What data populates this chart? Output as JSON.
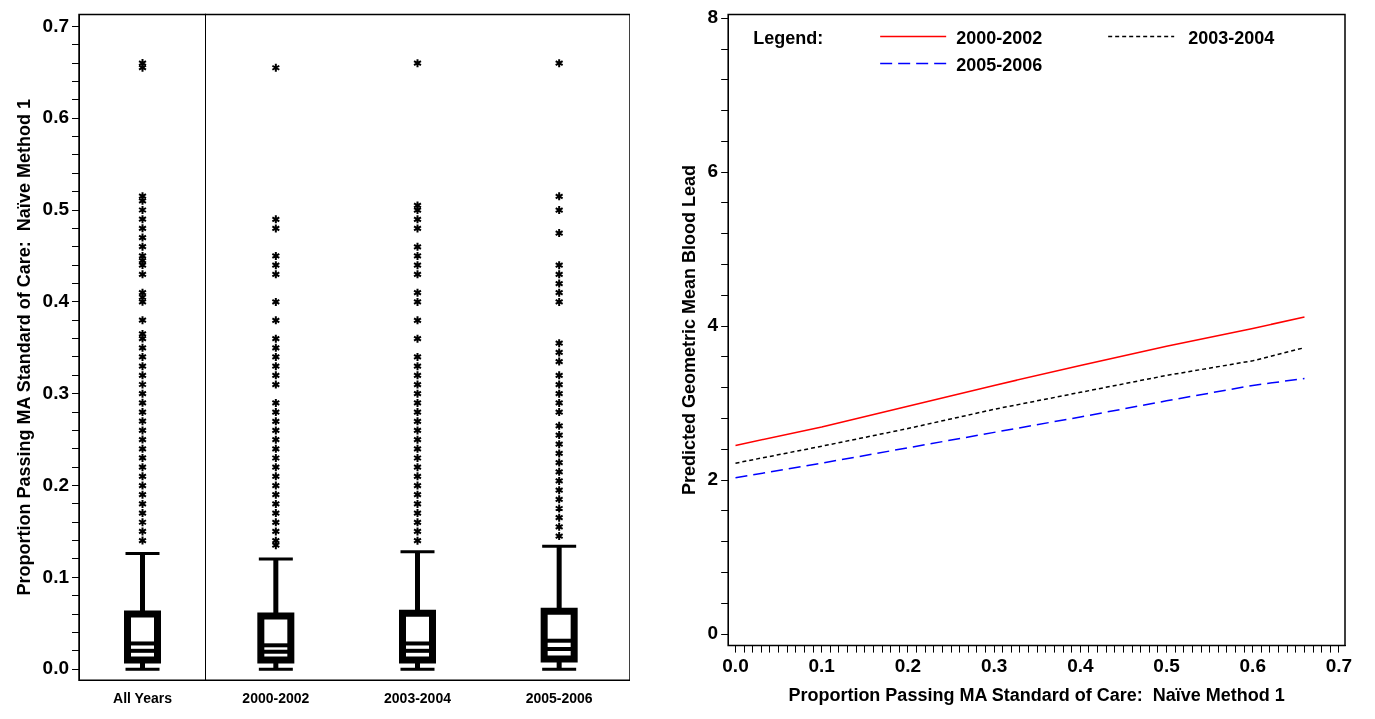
{
  "chart_data": [
    {
      "type": "box",
      "ylabel": "Proportion Passing MA Standard of Care:  Naïve Method 1",
      "categories": [
        "All Years"
      ],
      "ylim": [
        -0.012,
        0.713
      ],
      "yticks": [
        {
          "value": 0,
          "label": "0.0"
        },
        {
          "value": 0.02,
          "label": null
        },
        {
          "value": 0.04,
          "label": null
        },
        {
          "value": 0.06,
          "label": null
        },
        {
          "value": 0.08,
          "label": null
        },
        {
          "value": 0.1,
          "label": "0.1"
        },
        {
          "value": 0.12,
          "label": null
        },
        {
          "value": 0.14,
          "label": null
        },
        {
          "value": 0.16,
          "label": null
        },
        {
          "value": 0.18,
          "label": null
        },
        {
          "value": 0.2,
          "label": "0.2"
        },
        {
          "value": 0.22,
          "label": null
        },
        {
          "value": 0.24,
          "label": null
        },
        {
          "value": 0.26,
          "label": null
        },
        {
          "value": 0.28,
          "label": null
        },
        {
          "value": 0.3,
          "label": "0.3"
        },
        {
          "value": 0.32,
          "label": null
        },
        {
          "value": 0.34,
          "label": null
        },
        {
          "value": 0.36,
          "label": null
        },
        {
          "value": 0.38,
          "label": null
        },
        {
          "value": 0.4,
          "label": "0.4"
        },
        {
          "value": 0.42,
          "label": null
        },
        {
          "value": 0.44,
          "label": null
        },
        {
          "value": 0.46,
          "label": null
        },
        {
          "value": 0.48,
          "label": null
        },
        {
          "value": 0.5,
          "label": "0.5"
        },
        {
          "value": 0.52,
          "label": null
        },
        {
          "value": 0.54,
          "label": null
        },
        {
          "value": 0.56,
          "label": null
        },
        {
          "value": 0.58,
          "label": null
        },
        {
          "value": 0.6,
          "label": "0.6"
        },
        {
          "value": 0.62,
          "label": null
        },
        {
          "value": 0.64,
          "label": null
        },
        {
          "value": 0.66,
          "label": null
        },
        {
          "value": 0.68,
          "label": null
        },
        {
          "value": 0.7,
          "label": "0.7"
        }
      ],
      "boxes": [
        {
          "low": 0,
          "q1": 0.01,
          "median": 0.02,
          "mean": 0.028,
          "q3": 0.06,
          "high": 0.126,
          "outliers": [
            0.14,
            0.15,
            0.16,
            0.17,
            0.18,
            0.19,
            0.2,
            0.21,
            0.22,
            0.23,
            0.24,
            0.25,
            0.26,
            0.27,
            0.28,
            0.29,
            0.3,
            0.31,
            0.32,
            0.33,
            0.34,
            0.35,
            0.36,
            0.365,
            0.38,
            0.4,
            0.405,
            0.41,
            0.43,
            0.44,
            0.445,
            0.45,
            0.46,
            0.47,
            0.48,
            0.49,
            0.5,
            0.51,
            0.515,
            0.655,
            0.66
          ]
        }
      ]
    },
    {
      "type": "box",
      "categories": [
        "2000-2002",
        "2003-2004",
        "2005-2006"
      ],
      "ylim": [
        -0.012,
        0.713
      ],
      "tick_labels": "x",
      "yticks": [
        0,
        0.1,
        0.2,
        0.3,
        0.4,
        0.5,
        0.6,
        0.7
      ],
      "boxes": [
        {
          "low": 0,
          "q1": 0.01,
          "median": 0.019,
          "mean": 0.026,
          "q3": 0.058,
          "high": 0.12,
          "outliers": [
            0.135,
            0.14,
            0.15,
            0.16,
            0.17,
            0.18,
            0.19,
            0.2,
            0.21,
            0.22,
            0.23,
            0.24,
            0.25,
            0.26,
            0.27,
            0.28,
            0.29,
            0.31,
            0.32,
            0.33,
            0.34,
            0.35,
            0.36,
            0.38,
            0.4,
            0.43,
            0.44,
            0.45,
            0.48,
            0.49,
            0.655
          ]
        },
        {
          "low": 0,
          "q1": 0.01,
          "median": 0.02,
          "mean": 0.028,
          "q3": 0.061,
          "high": 0.128,
          "outliers": [
            0.14,
            0.15,
            0.16,
            0.17,
            0.18,
            0.19,
            0.2,
            0.21,
            0.22,
            0.23,
            0.24,
            0.25,
            0.26,
            0.27,
            0.28,
            0.29,
            0.3,
            0.31,
            0.32,
            0.33,
            0.34,
            0.36,
            0.38,
            0.4,
            0.41,
            0.43,
            0.44,
            0.45,
            0.46,
            0.48,
            0.49,
            0.5,
            0.505,
            0.66
          ]
        },
        {
          "low": 0,
          "q1": 0.011,
          "median": 0.022,
          "mean": 0.031,
          "q3": 0.063,
          "high": 0.134,
          "outliers": [
            0.145,
            0.155,
            0.165,
            0.175,
            0.185,
            0.195,
            0.205,
            0.215,
            0.225,
            0.235,
            0.245,
            0.255,
            0.265,
            0.28,
            0.29,
            0.3,
            0.31,
            0.32,
            0.335,
            0.345,
            0.355,
            0.4,
            0.41,
            0.42,
            0.43,
            0.44,
            0.475,
            0.5,
            0.515,
            0.66
          ]
        }
      ]
    },
    {
      "type": "line",
      "xlabel": "Proportion Passing MA Standard of Care:  Naïve Method 1",
      "ylabel": "Predicted Geometric Mean Blood Lead",
      "legend_title": "Legend:",
      "legend": "top",
      "marker": "none",
      "xlim": [
        -0.0085,
        0.707
      ],
      "ylim": [
        -0.15,
        8.05
      ],
      "xticks": [
        {
          "value": 0,
          "label": "0.0"
        },
        {
          "value": 0.01,
          "label": null
        },
        {
          "value": 0.02,
          "label": null
        },
        {
          "value": 0.03,
          "label": null
        },
        {
          "value": 0.04,
          "label": null
        },
        {
          "value": 0.05,
          "label": null
        },
        {
          "value": 0.06,
          "label": null
        },
        {
          "value": 0.07,
          "label": null
        },
        {
          "value": 0.08,
          "label": null
        },
        {
          "value": 0.09,
          "label": null
        },
        {
          "value": 0.1,
          "label": "0.1"
        },
        {
          "value": 0.11,
          "label": null
        },
        {
          "value": 0.12,
          "label": null
        },
        {
          "value": 0.13,
          "label": null
        },
        {
          "value": 0.14,
          "label": null
        },
        {
          "value": 0.15,
          "label": null
        },
        {
          "value": 0.16,
          "label": null
        },
        {
          "value": 0.17,
          "label": null
        },
        {
          "value": 0.18,
          "label": null
        },
        {
          "value": 0.19,
          "label": null
        },
        {
          "value": 0.2,
          "label": "0.2"
        },
        {
          "value": 0.21,
          "label": null
        },
        {
          "value": 0.22,
          "label": null
        },
        {
          "value": 0.23,
          "label": null
        },
        {
          "value": 0.24,
          "label": null
        },
        {
          "value": 0.25,
          "label": null
        },
        {
          "value": 0.26,
          "label": null
        },
        {
          "value": 0.27,
          "label": null
        },
        {
          "value": 0.28,
          "label": null
        },
        {
          "value": 0.29,
          "label": null
        },
        {
          "value": 0.3,
          "label": "0.3"
        },
        {
          "value": 0.31,
          "label": null
        },
        {
          "value": 0.32,
          "label": null
        },
        {
          "value": 0.33,
          "label": null
        },
        {
          "value": 0.34,
          "label": null
        },
        {
          "value": 0.35,
          "label": null
        },
        {
          "value": 0.36,
          "label": null
        },
        {
          "value": 0.37,
          "label": null
        },
        {
          "value": 0.38,
          "label": null
        },
        {
          "value": 0.39,
          "label": null
        },
        {
          "value": 0.4,
          "label": "0.4"
        },
        {
          "value": 0.41,
          "label": null
        },
        {
          "value": 0.42,
          "label": null
        },
        {
          "value": 0.43,
          "label": null
        },
        {
          "value": 0.44,
          "label": null
        },
        {
          "value": 0.45,
          "label": null
        },
        {
          "value": 0.46,
          "label": null
        },
        {
          "value": 0.47,
          "label": null
        },
        {
          "value": 0.48,
          "label": null
        },
        {
          "value": 0.49,
          "label": null
        },
        {
          "value": 0.5,
          "label": "0.5"
        },
        {
          "value": 0.51,
          "label": null
        },
        {
          "value": 0.52,
          "label": null
        },
        {
          "value": 0.53,
          "label": null
        },
        {
          "value": 0.54,
          "label": null
        },
        {
          "value": 0.55,
          "label": null
        },
        {
          "value": 0.56,
          "label": null
        },
        {
          "value": 0.57,
          "label": null
        },
        {
          "value": 0.58,
          "label": null
        },
        {
          "value": 0.59,
          "label": null
        },
        {
          "value": 0.6,
          "label": "0.6"
        },
        {
          "value": 0.61,
          "label": null
        },
        {
          "value": 0.62,
          "label": null
        },
        {
          "value": 0.63,
          "label": null
        },
        {
          "value": 0.64,
          "label": null
        },
        {
          "value": 0.65,
          "label": null
        },
        {
          "value": 0.66,
          "label": null
        },
        {
          "value": 0.67,
          "label": null
        },
        {
          "value": 0.68,
          "label": null
        },
        {
          "value": 0.69,
          "label": null
        },
        {
          "value": 0.7,
          "label": "0.7"
        }
      ],
      "yticks": [
        0,
        {
          "value": 0.4,
          "label": null
        },
        {
          "value": 0.8,
          "label": null
        },
        {
          "value": 1.2,
          "label": null
        },
        {
          "value": 1.6,
          "label": null
        },
        2,
        {
          "value": 2.4,
          "label": null
        },
        {
          "value": 2.8,
          "label": null
        },
        {
          "value": 3.2,
          "label": null
        },
        {
          "value": 3.6,
          "label": null
        },
        4,
        {
          "value": 4.4,
          "label": null
        },
        {
          "value": 4.8,
          "label": null
        },
        {
          "value": 5.2,
          "label": null
        },
        {
          "value": 5.6,
          "label": null
        },
        6,
        {
          "value": 6.4,
          "label": null
        },
        {
          "value": 6.8,
          "label": null
        },
        {
          "value": 7.2,
          "label": null
        },
        {
          "value": 7.6,
          "label": null
        },
        8
      ],
      "x": [
        0,
        0.1,
        0.2,
        0.3,
        0.4,
        0.5,
        0.6,
        0.66
      ],
      "series": [
        {
          "name": "2000-2002",
          "color": "#ff0000",
          "line_style": "solid",
          "values": [
            2.45,
            2.69,
            2.96,
            3.23,
            3.49,
            3.74,
            3.97,
            4.12
          ]
        },
        {
          "name": "2003-2004",
          "color": "#000000",
          "line_style": "dotted",
          "values": [
            2.22,
            2.44,
            2.67,
            2.92,
            3.14,
            3.36,
            3.55,
            3.72
          ]
        },
        {
          "name": "2005-2006",
          "color": "#0000ff",
          "line_style": "dashed",
          "values": [
            2.03,
            2.22,
            2.42,
            2.62,
            2.82,
            3.03,
            3.23,
            3.32
          ]
        }
      ]
    }
  ]
}
